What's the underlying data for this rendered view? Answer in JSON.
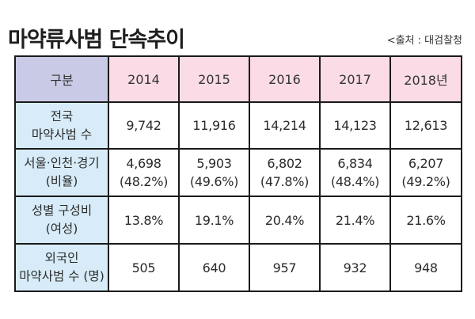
{
  "header": {
    "title": "마약류사범 단속추이",
    "source": "<출처 : 대검찰청"
  },
  "table": {
    "corner_label": "구분",
    "years": [
      "2014",
      "2015",
      "2016",
      "2017",
      "2018년"
    ],
    "rows": [
      {
        "label": [
          "전국",
          "마약사범 수"
        ],
        "cells": [
          [
            "9,742"
          ],
          [
            "11,916"
          ],
          [
            "14,214"
          ],
          [
            "14,123"
          ],
          [
            "12,613"
          ]
        ]
      },
      {
        "label": [
          "서울·인천·경기",
          "(비율)"
        ],
        "cells": [
          [
            "4,698",
            "(48.2%)"
          ],
          [
            "5,903",
            "(49.6%)"
          ],
          [
            "6,802",
            "(47.8%)"
          ],
          [
            "6,834",
            "(48.4%)"
          ],
          [
            "6,207",
            "(49.2%)"
          ]
        ]
      },
      {
        "label": [
          "성별 구성비",
          "(여성)"
        ],
        "cells": [
          [
            "13.8%"
          ],
          [
            "19.1%"
          ],
          [
            "20.4%"
          ],
          [
            "21.4%"
          ],
          [
            "21.6%"
          ]
        ]
      },
      {
        "label": [
          "외국인",
          "마약사범 수 (명)"
        ],
        "cells": [
          [
            "505"
          ],
          [
            "640"
          ],
          [
            "957"
          ],
          [
            "932"
          ],
          [
            "948"
          ]
        ]
      }
    ]
  },
  "colors": {
    "label_header_bg": "#c9cbe6",
    "year_header_bg": "#fadbe6",
    "row_label_bg": "#d7ecf8",
    "border": "#1a1a1a"
  }
}
